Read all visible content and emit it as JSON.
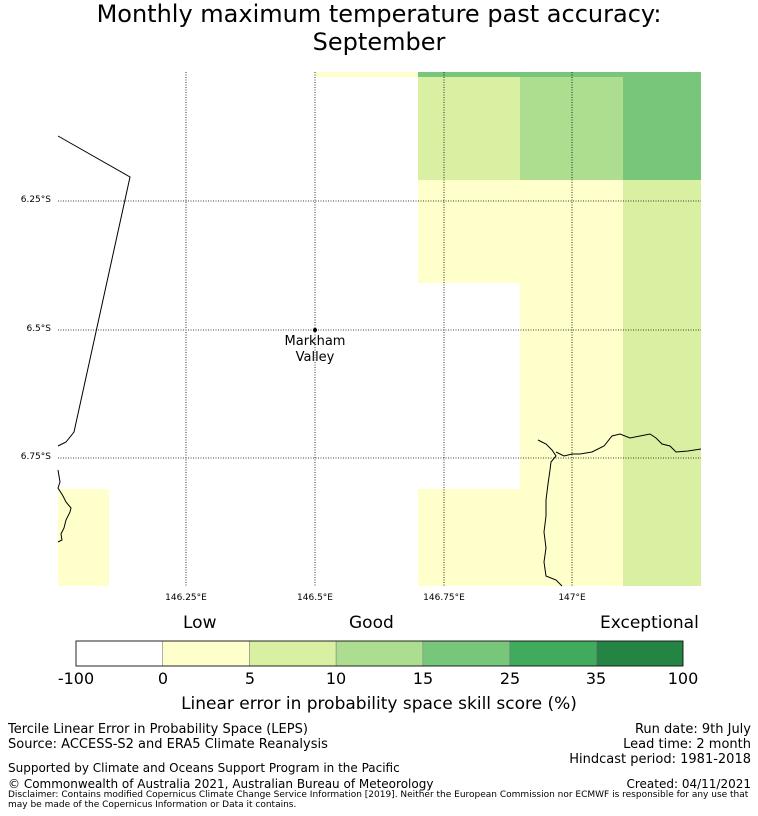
{
  "title": {
    "line1": "Monthly maximum temperature past accuracy:",
    "line2": "September"
  },
  "map": {
    "lat_labels": [
      "6.25°S",
      "6.5°S",
      "6.75°S"
    ],
    "lon_labels": [
      "146.25°E",
      "146.5°E",
      "146.75°E",
      "147°E"
    ],
    "place": {
      "name_line1": "Markham",
      "name_line2": "Valley",
      "lat": -6.5,
      "lon": 146.5
    },
    "extent": {
      "lon_min": 146.0,
      "lon_max": 147.25,
      "lat_min": -7.0,
      "lat_max": -6.0
    }
  },
  "legend": {
    "categories": [
      "Low",
      "Good",
      "Exceptional"
    ],
    "ticks": [
      "-100",
      "0",
      "5",
      "10",
      "15",
      "25",
      "35",
      "100"
    ],
    "colors": [
      "#ffffff",
      "#ffffcc",
      "#d9f0a3",
      "#addd8e",
      "#78c679",
      "#41ab5d",
      "#238443"
    ],
    "title": "Linear error in probability space skill score (%)"
  },
  "info": {
    "left1": "Tercile Linear Error in Probability Space (LEPS)",
    "left2": "Source: ACCESS-S2 and ERA5 Climate Reanalysis",
    "right1": "Run date: 9th July",
    "right2": "Lead time: 2 month",
    "right3": "Hindcast period: 1981-2018",
    "support": "Supported by Climate and Oceans Support Program in the Pacific",
    "copyright": "© Commonwealth of Australia 2021, Australian Bureau of Meteorology",
    "created": "Created: 04/11/2021",
    "disclaimer": "Disclaimer: Contains modified Copernicus Climate Change Service Information [2019]. Neither the European Commission nor ECMWF is responsible for any use that may be made of the Copernicus Information or Data it contains."
  }
}
